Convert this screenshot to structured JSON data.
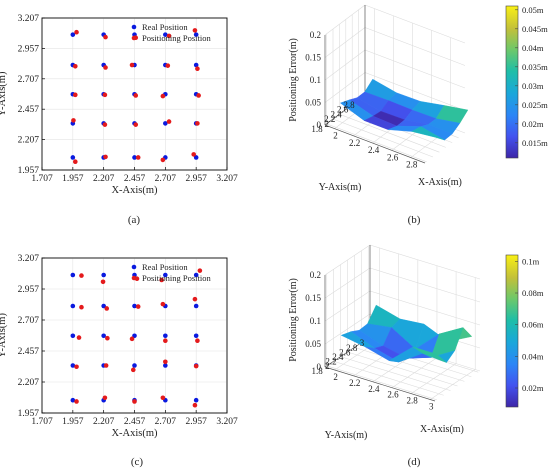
{
  "colors": {
    "real": "#0a1adf",
    "positioning": "#e41a1c"
  },
  "panels": [
    {
      "label": "(a)"
    },
    {
      "label": "(b)"
    },
    {
      "label": "(c)"
    },
    {
      "label": "(d)"
    }
  ],
  "chart_data": [
    {
      "type": "scatter",
      "xlabel": "X-Axis(m)",
      "ylabel": "Y-Axis(m)",
      "xlim": [
        1.707,
        3.207
      ],
      "ylim": [
        1.957,
        3.207
      ],
      "xticks": [
        "1.707",
        "1.957",
        "2.207",
        "2.457",
        "2.707",
        "2.957",
        "3.207"
      ],
      "yticks": [
        "1.957",
        "2.207",
        "2.457",
        "2.707",
        "2.957",
        "3.207"
      ],
      "legend": "top-right",
      "series": [
        {
          "name": "Real Position",
          "color": "#0a1adf",
          "points": [
            [
              1.957,
              3.07
            ],
            [
              2.207,
              3.07
            ],
            [
              2.457,
              3.07
            ],
            [
              2.707,
              3.07
            ],
            [
              2.957,
              3.07
            ],
            [
              1.957,
              2.82
            ],
            [
              2.207,
              2.82
            ],
            [
              2.457,
              2.82
            ],
            [
              2.707,
              2.82
            ],
            [
              2.957,
              2.82
            ],
            [
              1.957,
              2.58
            ],
            [
              2.207,
              2.58
            ],
            [
              2.457,
              2.58
            ],
            [
              2.707,
              2.58
            ],
            [
              2.957,
              2.58
            ],
            [
              1.957,
              2.34
            ],
            [
              2.207,
              2.34
            ],
            [
              2.457,
              2.34
            ],
            [
              2.707,
              2.34
            ],
            [
              2.957,
              2.34
            ],
            [
              1.957,
              2.06
            ],
            [
              2.207,
              2.06
            ],
            [
              2.457,
              2.06
            ],
            [
              2.707,
              2.06
            ],
            [
              2.957,
              2.06
            ]
          ]
        },
        {
          "name": "Positioning Position",
          "color": "#e41a1c",
          "points": [
            [
              1.987,
              3.09
            ],
            [
              2.222,
              3.05
            ],
            [
              2.467,
              3.045
            ],
            [
              2.737,
              3.06
            ],
            [
              2.947,
              3.105
            ],
            [
              1.977,
              2.81
            ],
            [
              2.222,
              2.8
            ],
            [
              2.437,
              2.82
            ],
            [
              2.727,
              2.815
            ],
            [
              2.967,
              2.79
            ],
            [
              1.977,
              2.575
            ],
            [
              2.217,
              2.575
            ],
            [
              2.467,
              2.57
            ],
            [
              2.687,
              2.565
            ],
            [
              2.977,
              2.57
            ],
            [
              1.962,
              2.365
            ],
            [
              2.217,
              2.33
            ],
            [
              2.467,
              2.33
            ],
            [
              2.737,
              2.355
            ],
            [
              2.967,
              2.34
            ],
            [
              1.977,
              2.025
            ],
            [
              2.222,
              2.065
            ],
            [
              2.487,
              2.06
            ],
            [
              2.687,
              2.04
            ],
            [
              2.937,
              2.085
            ]
          ]
        }
      ]
    },
    {
      "type": "surface",
      "xlabel": "X-Axis(m)",
      "ylabel": "Y-Axis(m)",
      "zlabel": "Positioning Error(m)",
      "xticks": [
        "2",
        "2.2",
        "2.4",
        "2.6",
        "2.8"
      ],
      "yticks": [
        "1.8",
        "2",
        "2.2",
        "2.4",
        "2.6",
        "2.8"
      ],
      "zticks": [
        "0",
        "0.05",
        "0.1",
        "0.15",
        "0.2"
      ],
      "zlim": [
        0,
        0.2
      ],
      "colorbar": {
        "ticks": [
          "0.015m",
          "0.02m",
          "0.025m",
          "0.03m",
          "0.035m",
          "0.04m",
          "0.045m",
          "0.05m"
        ],
        "range": [
          0.011,
          0.051
        ]
      },
      "x": [
        1.957,
        2.207,
        2.457,
        2.707,
        2.957
      ],
      "y": [
        2.06,
        2.34,
        2.58,
        2.82,
        3.07
      ],
      "z": [
        [
          0.037,
          0.018,
          0.018,
          0.034,
          0.041
        ],
        [
          0.029,
          0.013,
          0.011,
          0.03,
          0.02
        ],
        [
          0.021,
          0.011,
          0.012,
          0.022,
          0.021
        ],
        [
          0.021,
          0.022,
          0.021,
          0.022,
          0.032
        ],
        [
          0.036,
          0.026,
          0.027,
          0.038,
          0.048
        ]
      ]
    },
    {
      "type": "scatter",
      "xlabel": "X-Axis(m)",
      "ylabel": "Y-Axis(m)",
      "xlim": [
        1.707,
        3.207
      ],
      "ylim": [
        1.957,
        3.207
      ],
      "xticks": [
        "1.707",
        "1.957",
        "2.207",
        "2.457",
        "2.707",
        "2.957",
        "3.207"
      ],
      "yticks": [
        "1.957",
        "2.207",
        "2.457",
        "2.707",
        "2.957",
        "3.207"
      ],
      "legend": "top-right",
      "series": [
        {
          "name": "Real Position",
          "color": "#0a1adf",
          "points": [
            [
              1.957,
              3.07
            ],
            [
              2.207,
              3.07
            ],
            [
              2.457,
              3.07
            ],
            [
              2.707,
              3.07
            ],
            [
              2.957,
              3.07
            ],
            [
              1.957,
              2.82
            ],
            [
              2.207,
              2.82
            ],
            [
              2.457,
              2.82
            ],
            [
              2.707,
              2.82
            ],
            [
              2.957,
              2.82
            ],
            [
              1.957,
              2.58
            ],
            [
              2.207,
              2.58
            ],
            [
              2.457,
              2.58
            ],
            [
              2.707,
              2.58
            ],
            [
              2.957,
              2.58
            ],
            [
              1.957,
              2.34
            ],
            [
              2.207,
              2.34
            ],
            [
              2.457,
              2.34
            ],
            [
              2.707,
              2.34
            ],
            [
              2.957,
              2.34
            ],
            [
              1.957,
              2.06
            ],
            [
              2.207,
              2.06
            ],
            [
              2.457,
              2.06
            ],
            [
              2.707,
              2.06
            ],
            [
              2.957,
              2.06
            ]
          ]
        },
        {
          "name": "Positioning Position",
          "color": "#e41a1c",
          "points": [
            [
              2.027,
              3.065
            ],
            [
              2.202,
              3.015
            ],
            [
              2.477,
              3.04
            ],
            [
              2.677,
              3.03
            ],
            [
              2.987,
              3.105
            ],
            [
              2.027,
              2.81
            ],
            [
              2.232,
              2.8
            ],
            [
              2.487,
              2.815
            ],
            [
              2.687,
              2.835
            ],
            [
              2.947,
              2.875
            ],
            [
              2.007,
              2.565
            ],
            [
              2.237,
              2.56
            ],
            [
              2.437,
              2.555
            ],
            [
              2.707,
              2.54
            ],
            [
              2.967,
              2.54
            ],
            [
              1.987,
              2.33
            ],
            [
              2.227,
              2.34
            ],
            [
              2.447,
              2.305
            ],
            [
              2.707,
              2.37
            ],
            [
              2.957,
              2.335
            ],
            [
              1.987,
              2.05
            ],
            [
              2.217,
              2.08
            ],
            [
              2.457,
              2.05
            ],
            [
              2.687,
              2.08
            ],
            [
              2.947,
              2.02
            ]
          ]
        }
      ]
    },
    {
      "type": "surface",
      "xlabel": "X-Axis(m)",
      "ylabel": "Y-Axis(m)",
      "zlabel": "Positioning Error(m)",
      "xticks": [
        "2",
        "2.2",
        "2.4",
        "2.6",
        "2.8",
        "3"
      ],
      "yticks": [
        "1.8",
        "2",
        "2.2",
        "2.4",
        "2.6",
        "2.8",
        "3"
      ],
      "zticks": [
        "0",
        "0.05",
        "0.1",
        "0.15",
        "0.2"
      ],
      "zlim": [
        0,
        0.2
      ],
      "colorbar": {
        "ticks": [
          "0.02m",
          "0.04m",
          "0.06m",
          "0.08m",
          "0.1m"
        ],
        "range": [
          0.008,
          0.104
        ]
      },
      "x": [
        1.957,
        2.207,
        2.457,
        2.707,
        2.957
      ],
      "y": [
        2.06,
        2.34,
        2.58,
        2.82,
        3.07
      ],
      "z": [
        [
          0.057,
          0.048,
          0.034,
          0.08,
          0.08
        ],
        [
          0.051,
          0.031,
          0.017,
          0.052,
          0.048
        ],
        [
          0.042,
          0.024,
          0.013,
          0.031,
          0.062
        ],
        [
          0.044,
          0.052,
          0.021,
          0.07,
          0.1
        ],
        [
          0.072,
          0.058,
          0.063,
          0.041,
          0.068
        ]
      ]
    }
  ]
}
